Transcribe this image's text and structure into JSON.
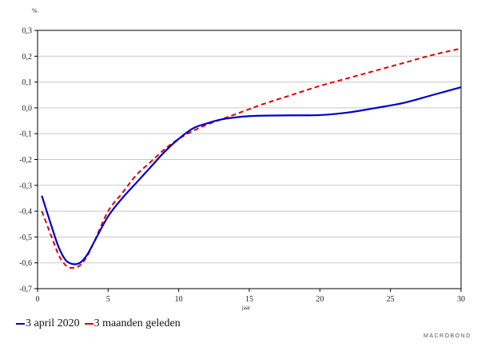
{
  "chart_data": {
    "type": "line",
    "unit_label": "%",
    "xlabel": "jaar",
    "xlim": [
      0,
      30
    ],
    "ylim": [
      -0.7,
      0.3
    ],
    "x_ticks": [
      0,
      5,
      10,
      15,
      20,
      25,
      30
    ],
    "y_ticks": [
      0.3,
      0.2,
      0.1,
      0.0,
      -0.1,
      -0.2,
      -0.3,
      -0.4,
      -0.5,
      -0.6,
      -0.7
    ],
    "y_tick_labels": [
      "0,3",
      "0,2",
      "0,1",
      "0,0",
      "-0,1",
      "-0,2",
      "-0,3",
      "-0,4",
      "-0,5",
      "-0,6",
      "-0,7"
    ],
    "grid": "horizontal",
    "legend_position": "bottom-left",
    "series": [
      {
        "name": "3 april 2020",
        "color": "#0000cc",
        "style": "solid",
        "x": [
          0.3,
          1,
          1.5,
          2,
          2.5,
          3,
          3.5,
          4,
          5,
          6,
          7,
          8,
          9,
          10,
          11,
          12,
          13,
          14,
          15,
          16,
          18,
          20,
          22,
          24,
          26,
          28,
          30
        ],
        "y": [
          -0.34,
          -0.46,
          -0.54,
          -0.59,
          -0.605,
          -0.6,
          -0.57,
          -0.52,
          -0.42,
          -0.35,
          -0.29,
          -0.23,
          -0.17,
          -0.12,
          -0.08,
          -0.06,
          -0.045,
          -0.037,
          -0.032,
          -0.03,
          -0.029,
          -0.028,
          -0.018,
          0.0,
          0.02,
          0.05,
          0.08
        ]
      },
      {
        "name": "3 maanden geleden",
        "color": "#e00000",
        "style": "dashed",
        "x": [
          0.3,
          1,
          1.5,
          2,
          2.5,
          3,
          3.5,
          4,
          5,
          6,
          7,
          8,
          9,
          10,
          11,
          12,
          13,
          14,
          15,
          16,
          18,
          20,
          22,
          24,
          26,
          28,
          30
        ],
        "y": [
          -0.4,
          -0.5,
          -0.57,
          -0.61,
          -0.62,
          -0.61,
          -0.575,
          -0.52,
          -0.4,
          -0.33,
          -0.26,
          -0.21,
          -0.16,
          -0.12,
          -0.09,
          -0.065,
          -0.045,
          -0.025,
          -0.005,
          0.015,
          0.05,
          0.085,
          0.115,
          0.145,
          0.175,
          0.205,
          0.23
        ]
      }
    ]
  },
  "brand": "MACROBOND"
}
